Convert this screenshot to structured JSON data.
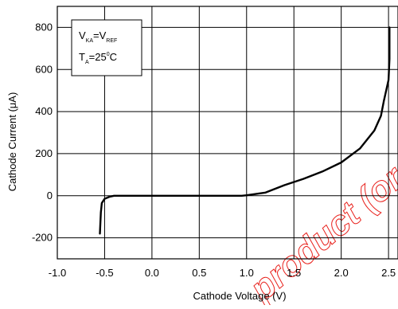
{
  "chart_data": {
    "type": "line",
    "title": "",
    "xlabel": "Cathode Voltage (V)",
    "ylabel": "Cathode Current (μA)",
    "xlim": [
      -1.0,
      2.6
    ],
    "ylim": [
      -300,
      900
    ],
    "x_ticks": [
      -1.0,
      -0.5,
      0.0,
      0.5,
      1.0,
      1.5,
      2.0,
      2.5
    ],
    "x_tick_labels": [
      "-1.0",
      "-0.5",
      "0.0",
      "0.5",
      "1.0",
      "1.5",
      "2.0",
      "2.5"
    ],
    "y_ticks": [
      -200,
      0,
      200,
      400,
      600,
      800
    ],
    "y_tick_labels": [
      "-200",
      "0",
      "200",
      "400",
      "600",
      "800"
    ],
    "grid": true,
    "legend_position": "top-left",
    "legend": {
      "line1": {
        "v": "V",
        "sub1": "KA",
        "eq": "=V",
        "sub2": "REF"
      },
      "line2": {
        "t": "T",
        "sub": "A",
        "value": "=25",
        "sup": "0",
        "unit": "C"
      }
    },
    "series": [
      {
        "x": [
          -0.55,
          -0.54,
          -0.53,
          -0.5,
          -0.45,
          -0.4,
          -0.3,
          0.0,
          0.5,
          0.95,
          1.0,
          1.2,
          1.4,
          1.6,
          1.8,
          2.0,
          2.2,
          2.35,
          2.42,
          2.45,
          2.5,
          2.51,
          2.51
        ],
        "y": [
          -180,
          -80,
          -35,
          -15,
          -5,
          0,
          0,
          0,
          0,
          0,
          2,
          15,
          50,
          80,
          115,
          158,
          225,
          310,
          380,
          450,
          550,
          650,
          800
        ]
      }
    ],
    "watermark_text": "product (or pro t are n"
  },
  "colors": {
    "curve": "#000000",
    "watermark": "#e8211c"
  }
}
